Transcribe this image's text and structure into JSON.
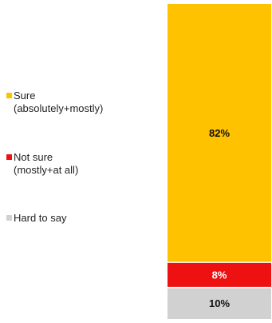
{
  "chart_data": {
    "type": "bar",
    "stacked": true,
    "categories": [
      ""
    ],
    "series": [
      {
        "name": "Hard to say",
        "values": [
          10
        ],
        "label": "10%",
        "color": "#d1d1d1",
        "label_color": "#111111"
      },
      {
        "name": "Not sure\n(mostly+at all)",
        "values": [
          8
        ],
        "label": "8%",
        "color": "#ee1111",
        "label_color": "#ffffff"
      },
      {
        "name": "Sure\n(absolutely+mostly)",
        "values": [
          82
        ],
        "label": "82%",
        "color": "#ffc200",
        "label_color": "#111111"
      }
    ],
    "legend": {
      "position": "left",
      "order": [
        "Sure\n(absolutely+mostly)",
        "Not sure\n(mostly+at all)",
        "Hard to say"
      ]
    },
    "ylim": [
      0,
      100
    ],
    "title": "",
    "xlabel": "",
    "ylabel": "",
    "grid": false
  }
}
